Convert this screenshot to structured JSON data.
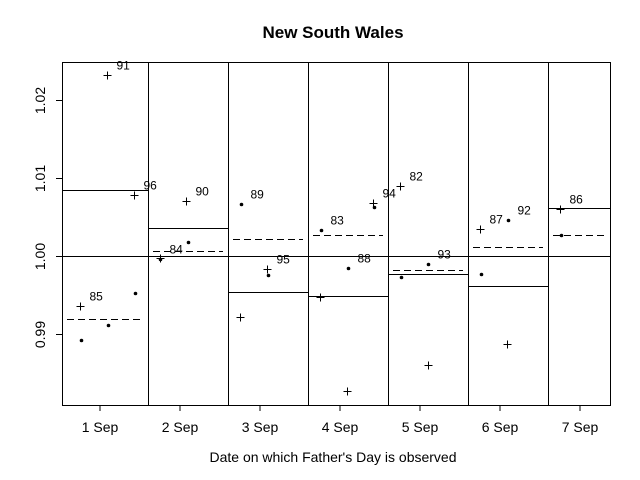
{
  "chart_data": {
    "type": "scatter",
    "title": "New South Wales",
    "xlabel": "Date on which Father's Day is observed",
    "ylabel": "",
    "categories": [
      "1 Sep",
      "2 Sep",
      "3 Sep",
      "4 Sep",
      "5 Sep",
      "6 Sep",
      "7 Sep"
    ],
    "xlim": [
      0.525,
      7.375
    ],
    "ylim": [
      0.9809,
      1.0249
    ],
    "yticks": [
      0.99,
      1.0,
      1.01,
      1.02
    ],
    "ytick_labels": [
      "0.99",
      "1.00",
      "1.01",
      "1.02"
    ],
    "reference_line": 1.0,
    "grid": false,
    "legend": "none",
    "panel_lines": [
      {
        "category": "1 Sep",
        "solid": 1.0085,
        "dashed": 0.9919
      },
      {
        "category": "2 Sep",
        "solid": 1.0036,
        "dashed": 1.0006
      },
      {
        "category": "3 Sep",
        "solid": 0.9954,
        "dashed": 1.0022
      },
      {
        "category": "4 Sep",
        "solid": 0.9949,
        "dashed": 1.0027
      },
      {
        "category": "5 Sep",
        "solid": 0.9977,
        "dashed": 0.9982
      },
      {
        "category": "6 Sep",
        "solid": 0.9962,
        "dashed": 1.0012
      },
      {
        "category": "7 Sep",
        "solid": 1.0062,
        "dashed": 1.0027
      }
    ],
    "points": [
      {
        "x": 1.09,
        "y": 1.0232,
        "marker": "plus",
        "label": "91"
      },
      {
        "x": 1.43,
        "y": 1.0079,
        "marker": "plus",
        "label": "96"
      },
      {
        "x": 0.75,
        "y": 0.9936,
        "marker": "plus",
        "label": "85"
      },
      {
        "x": 0.76,
        "y": 0.9892,
        "marker": "dot",
        "label": ""
      },
      {
        "x": 1.1,
        "y": 0.9912,
        "marker": "dot",
        "label": ""
      },
      {
        "x": 1.44,
        "y": 0.9953,
        "marker": "dot",
        "label": ""
      },
      {
        "x": 1.75,
        "y": 0.9997,
        "marker": "plus",
        "label": ""
      },
      {
        "x": 1.75,
        "y": 0.9996,
        "marker": "dot",
        "label": "84"
      },
      {
        "x": 2.1,
        "y": 1.0018,
        "marker": "dot",
        "label": ""
      },
      {
        "x": 2.08,
        "y": 1.0071,
        "marker": "plus",
        "label": "90"
      },
      {
        "x": 2.76,
        "y": 1.0067,
        "marker": "dot",
        "label": "89"
      },
      {
        "x": 3.09,
        "y": 0.9983,
        "marker": "plus",
        "label": "95"
      },
      {
        "x": 3.1,
        "y": 0.9976,
        "marker": "dot",
        "label": ""
      },
      {
        "x": 2.75,
        "y": 0.9922,
        "marker": "plus",
        "label": ""
      },
      {
        "x": 3.76,
        "y": 1.0033,
        "marker": "dot",
        "label": "83"
      },
      {
        "x": 4.1,
        "y": 0.9985,
        "marker": "dot",
        "label": "88"
      },
      {
        "x": 3.75,
        "y": 0.9947,
        "marker": "plus",
        "label": ""
      },
      {
        "x": 4.09,
        "y": 0.9827,
        "marker": "plus",
        "label": ""
      },
      {
        "x": 4.41,
        "y": 1.0068,
        "marker": "plus",
        "label": "94"
      },
      {
        "x": 4.43,
        "y": 1.0063,
        "marker": "dot",
        "label": ""
      },
      {
        "x": 4.75,
        "y": 1.009,
        "marker": "plus",
        "label": "82"
      },
      {
        "x": 5.1,
        "y": 0.999,
        "marker": "dot",
        "label": "93"
      },
      {
        "x": 4.76,
        "y": 0.9973,
        "marker": "dot",
        "label": ""
      },
      {
        "x": 5.1,
        "y": 0.986,
        "marker": "plus",
        "label": ""
      },
      {
        "x": 5.75,
        "y": 1.0035,
        "marker": "plus",
        "label": "87"
      },
      {
        "x": 6.1,
        "y": 1.0046,
        "marker": "dot",
        "label": "92"
      },
      {
        "x": 5.76,
        "y": 0.9977,
        "marker": "dot",
        "label": ""
      },
      {
        "x": 6.09,
        "y": 0.9887,
        "marker": "plus",
        "label": ""
      },
      {
        "x": 6.75,
        "y": 1.006,
        "marker": "plus",
        "label": "86"
      },
      {
        "x": 6.76,
        "y": 1.0027,
        "marker": "dot",
        "label": ""
      }
    ]
  }
}
